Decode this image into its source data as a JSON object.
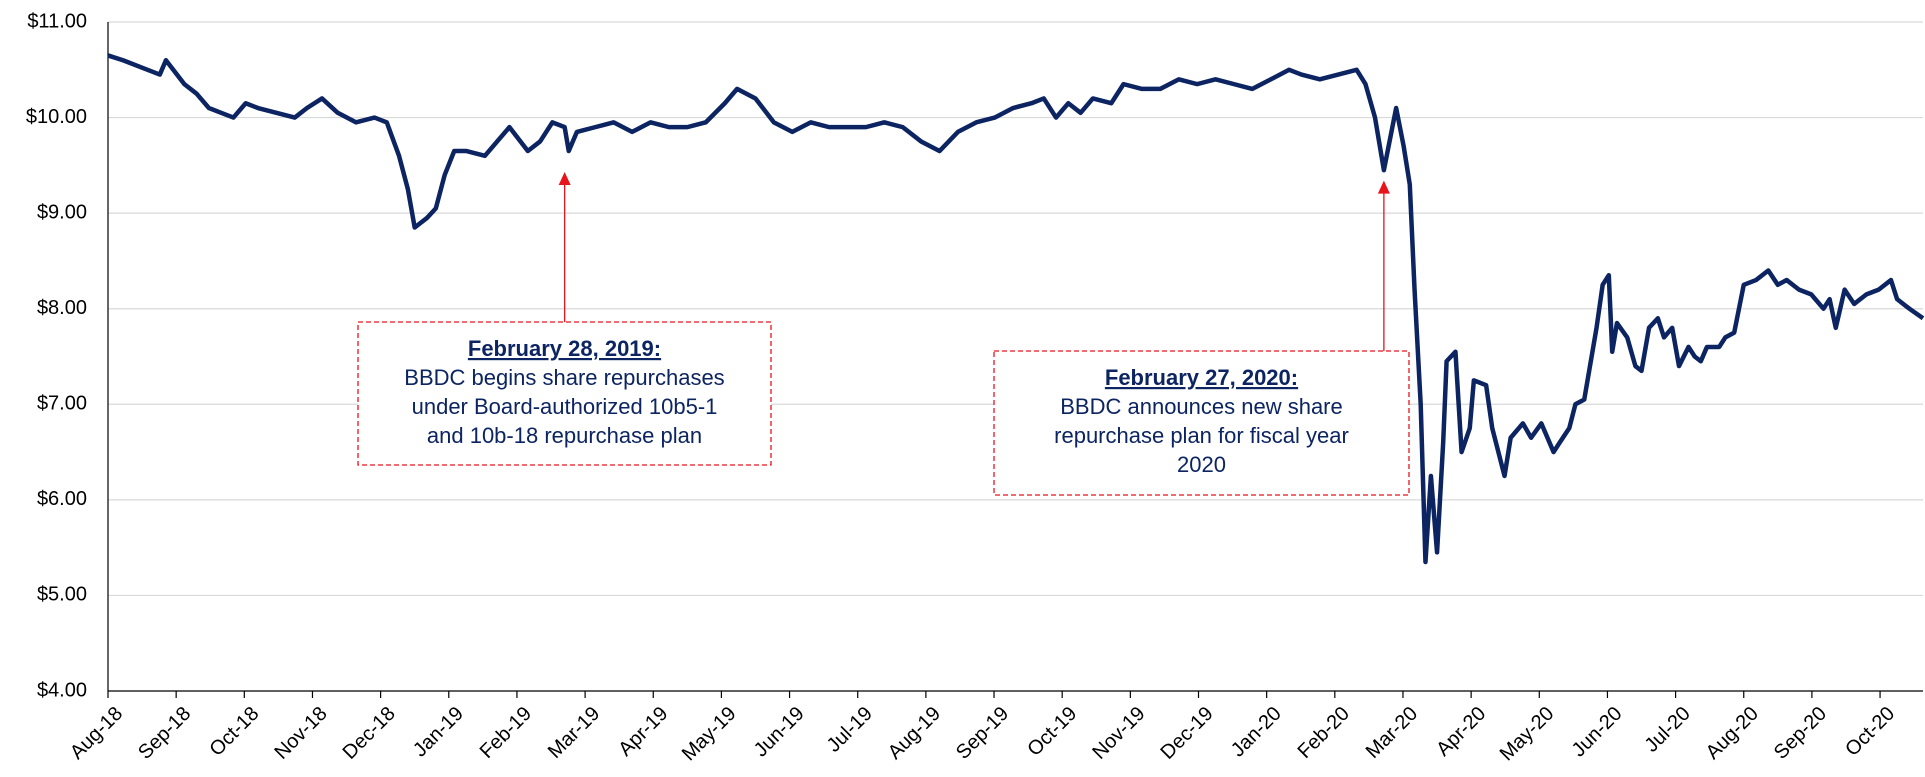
{
  "chart_data": {
    "type": "line",
    "x": [
      0,
      0.22,
      0.58,
      0.76,
      0.85,
      1.12,
      1.3,
      1.48,
      1.66,
      1.84,
      2.02,
      2.2,
      2.47,
      2.74,
      2.92,
      3.14,
      3.37,
      3.64,
      3.91,
      4.09,
      4.27,
      4.4,
      4.5,
      4.68,
      4.81,
      4.94,
      5.08,
      5.26,
      5.53,
      5.71,
      5.89,
      6.16,
      6.34,
      6.52,
      6.7,
      6.76,
      6.88,
      7.15,
      7.42,
      7.69,
      7.96,
      8.23,
      8.5,
      8.77,
      9.05,
      9.23,
      9.5,
      9.77,
      10.04,
      10.31,
      10.58,
      10.85,
      11.12,
      11.39,
      11.66,
      11.93,
      12.2,
      12.47,
      12.74,
      13.01,
      13.28,
      13.55,
      13.73,
      13.91,
      14.09,
      14.27,
      14.45,
      14.72,
      14.9,
      15.17,
      15.44,
      15.71,
      15.98,
      16.25,
      16.52,
      16.79,
      17.06,
      17.33,
      17.51,
      17.78,
      18.05,
      18.32,
      18.45,
      18.59,
      18.72,
      18.9,
      19.01,
      19.1,
      19.17,
      19.26,
      19.33,
      19.41,
      19.5,
      19.59,
      19.64,
      19.77,
      19.86,
      19.98,
      20.04,
      20.22,
      20.31,
      20.49,
      20.58,
      20.76,
      20.88,
      21.03,
      21.21,
      21.3,
      21.44,
      21.53,
      21.66,
      21.84,
      21.93,
      22.02,
      22.07,
      22.14,
      22.29,
      22.41,
      22.5,
      22.61,
      22.74,
      22.83,
      22.95,
      23.05,
      23.19,
      23.28,
      23.37,
      23.46,
      23.64,
      23.73,
      23.86,
      24.0,
      24.18,
      24.36,
      24.5,
      24.63,
      24.81,
      24.99,
      25.17,
      25.26,
      25.35,
      25.48,
      25.62,
      25.8,
      25.98,
      26.16,
      26.25,
      26.43,
      26.63
    ],
    "series": [
      {
        "name": "BBDC",
        "color": "#0c2461",
        "values": [
          10.65,
          10.6,
          10.5,
          10.45,
          10.6,
          10.35,
          10.25,
          10.1,
          10.05,
          10.0,
          10.15,
          10.1,
          10.05,
          10.0,
          10.1,
          10.2,
          10.05,
          9.95,
          10.0,
          9.95,
          9.6,
          9.25,
          8.85,
          8.95,
          9.05,
          9.4,
          9.65,
          9.65,
          9.6,
          9.75,
          9.9,
          9.65,
          9.75,
          9.95,
          9.9,
          9.65,
          9.85,
          9.9,
          9.95,
          9.85,
          9.95,
          9.9,
          9.9,
          9.95,
          10.15,
          10.3,
          10.2,
          9.95,
          9.85,
          9.95,
          9.9,
          9.9,
          9.9,
          9.95,
          9.9,
          9.75,
          9.65,
          9.85,
          9.95,
          10.0,
          10.1,
          10.15,
          10.2,
          10.0,
          10.15,
          10.05,
          10.2,
          10.15,
          10.35,
          10.3,
          10.3,
          10.4,
          10.35,
          10.4,
          10.35,
          10.3,
          10.4,
          10.5,
          10.45,
          10.4,
          10.45,
          10.5,
          10.35,
          10.0,
          9.45,
          10.1,
          9.7,
          9.3,
          8.2,
          7.0,
          5.35,
          6.25,
          5.45,
          6.6,
          7.45,
          7.55,
          6.5,
          6.75,
          7.25,
          7.2,
          6.75,
          6.25,
          6.65,
          6.8,
          6.65,
          6.8,
          6.5,
          6.6,
          6.75,
          7.0,
          7.05,
          7.8,
          8.25,
          8.35,
          7.55,
          7.85,
          7.7,
          7.4,
          7.35,
          7.8,
          7.9,
          7.7,
          7.8,
          7.4,
          7.6,
          7.5,
          7.45,
          7.6,
          7.6,
          7.7,
          7.75,
          8.25,
          8.3,
          8.4,
          8.25,
          8.3,
          8.2,
          8.15,
          8.0,
          8.1,
          7.8,
          8.2,
          8.05,
          8.15,
          8.2,
          8.3,
          8.1,
          8.0,
          7.9
        ]
      }
    ],
    "xlim": [
      0,
      26.63
    ],
    "xticks": [
      {
        "value": 0,
        "label": "Aug-18"
      },
      {
        "value": 1,
        "label": "Sep-18"
      },
      {
        "value": 2,
        "label": "Oct-18"
      },
      {
        "value": 3,
        "label": "Nov-18"
      },
      {
        "value": 4,
        "label": "Dec-18"
      },
      {
        "value": 5,
        "label": "Jan-19"
      },
      {
        "value": 6,
        "label": "Feb-19"
      },
      {
        "value": 7,
        "label": "Mar-19"
      },
      {
        "value": 8,
        "label": "Apr-19"
      },
      {
        "value": 9,
        "label": "May-19"
      },
      {
        "value": 10,
        "label": "Jun-19"
      },
      {
        "value": 11,
        "label": "Jul-19"
      },
      {
        "value": 12,
        "label": "Aug-19"
      },
      {
        "value": 13,
        "label": "Sep-19"
      },
      {
        "value": 14,
        "label": "Oct-19"
      },
      {
        "value": 15,
        "label": "Nov-19"
      },
      {
        "value": 16,
        "label": "Dec-19"
      },
      {
        "value": 17,
        "label": "Jan-20"
      },
      {
        "value": 18,
        "label": "Feb-20"
      },
      {
        "value": 19,
        "label": "Mar-20"
      },
      {
        "value": 20,
        "label": "Apr-20"
      },
      {
        "value": 21,
        "label": "May-20"
      },
      {
        "value": 22,
        "label": "Jun-20"
      },
      {
        "value": 23,
        "label": "Jul-20"
      },
      {
        "value": 24,
        "label": "Aug-20"
      },
      {
        "value": 25,
        "label": "Sep-20"
      },
      {
        "value": 26,
        "label": "Oct-20"
      }
    ],
    "ylim": [
      4,
      11
    ],
    "yticks": [
      {
        "value": 4,
        "label": "$4.00"
      },
      {
        "value": 5,
        "label": "$5.00"
      },
      {
        "value": 6,
        "label": "$6.00"
      },
      {
        "value": 7,
        "label": "$7.00"
      },
      {
        "value": 8,
        "label": "$8.00"
      },
      {
        "value": 9,
        "label": "$9.00"
      },
      {
        "value": 10,
        "label": "$10.00"
      },
      {
        "value": 11,
        "label": "$11.00"
      }
    ],
    "grid": true,
    "annotations": [
      {
        "title": "February 28, 2019:",
        "lines": [
          "BBDC begins share repurchases",
          "under Board-authorized 10b5-1",
          "and 10b-18 repurchase plan"
        ],
        "x": 6.7,
        "y": 9.43,
        "color": "#e8141c"
      },
      {
        "title": "February 27, 2020:",
        "lines": [
          "BBDC announces new share",
          "repurchase plan for fiscal year",
          "2020"
        ],
        "x": 18.72,
        "y": 9.34,
        "color": "#e8141c"
      }
    ]
  }
}
